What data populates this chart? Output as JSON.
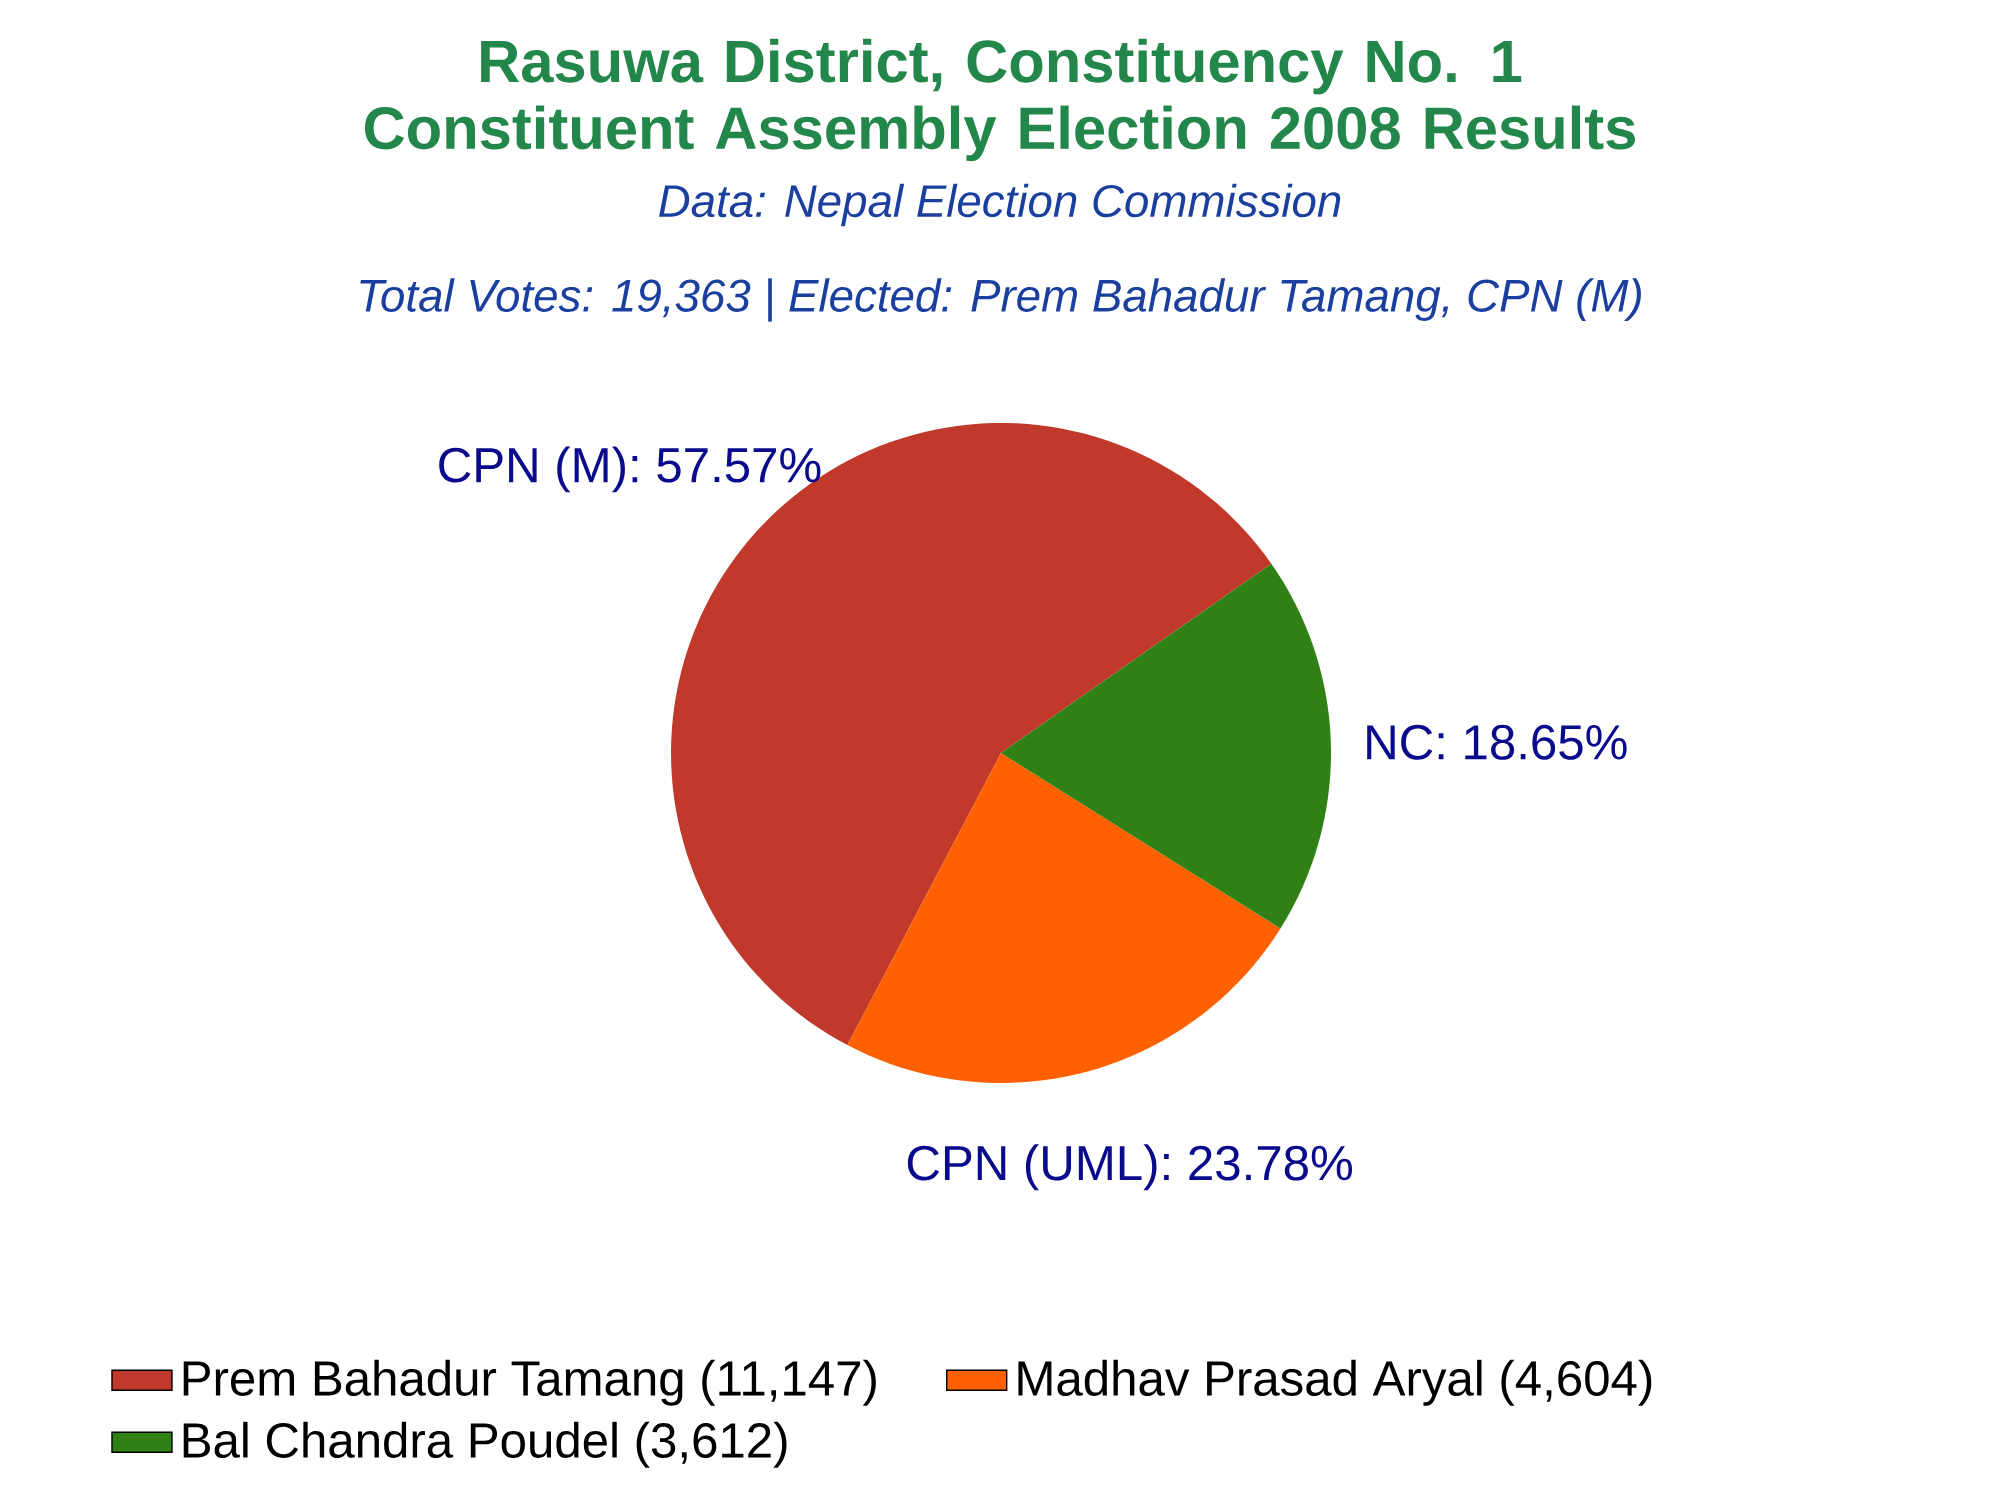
{
  "chart_data": {
    "type": "pie",
    "title": "Rasuwa District, Constituency No. 1 Constituent Assembly Election 2008 Results",
    "subtitle": "Total Votes: 19,363 | Elected: Prem Bahadur Tamang, CPN (M)",
    "annotations": [
      "Data: Nepal Election Commission"
    ],
    "categories": [
      "Prem Bahadur Tamang (11,147)",
      "Madhav Prasad Aryal (4,604)",
      "Bal Chandra Poudel (3,612)"
    ],
    "values": [
      57.57,
      23.78,
      18.65
    ],
    "value_labels": [
      "CPN (M): 57.57%",
      "CPN (UML): 23.78%",
      "NC: 18.65%"
    ],
    "colors": [
      "#c0392b",
      "#ff6000",
      "#318015"
    ],
    "legend": "bottom"
  }
}
